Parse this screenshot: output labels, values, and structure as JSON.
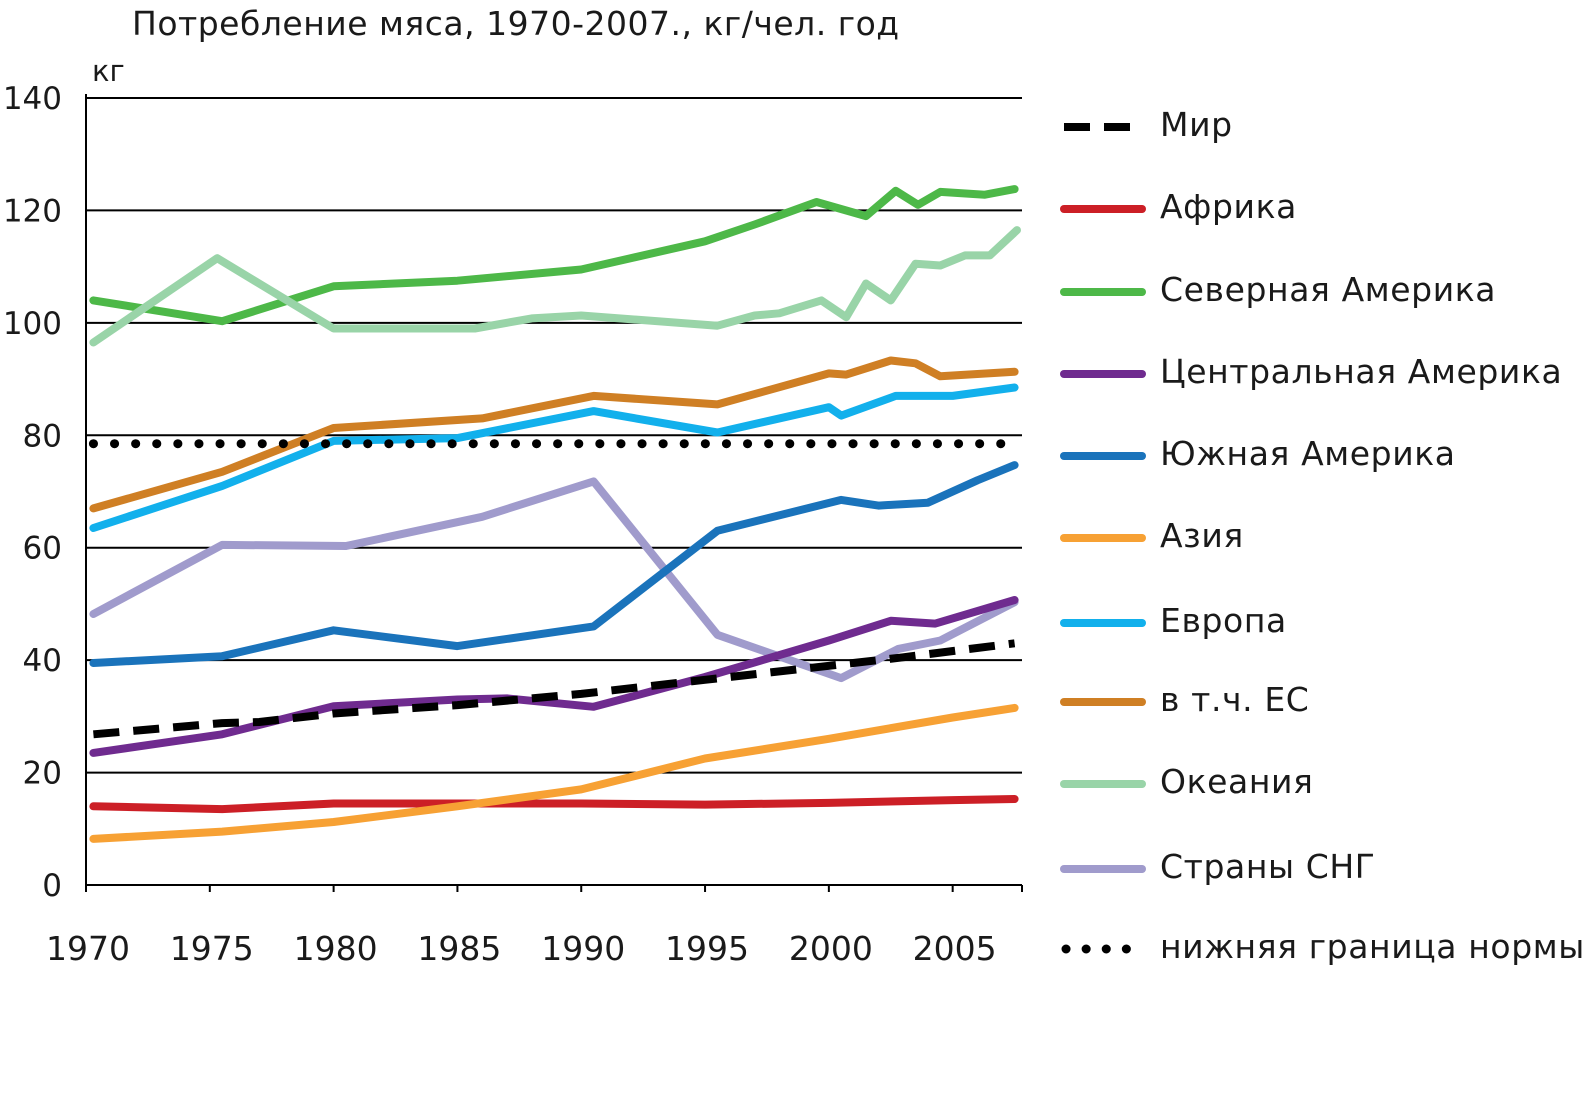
{
  "chart_data": {
    "type": "line",
    "title": "Потребление мяса, 1970-2007., кг/чел. год",
    "ylabel": "кг",
    "xlabel": "",
    "xlim": [
      1970,
      2007.8
    ],
    "ylim": [
      0,
      140
    ],
    "x_ticks": [
      1970,
      1975,
      1980,
      1985,
      1990,
      1995,
      2000,
      2005
    ],
    "y_ticks": [
      0,
      20,
      40,
      60,
      80,
      100,
      120,
      140
    ],
    "grid": "horizontal",
    "legend_position": "right",
    "series": [
      {
        "name": "Мир",
        "color": "#000000",
        "style": "dashed",
        "points": [
          [
            1970.3,
            26.8
          ],
          [
            1975.5,
            28.8
          ],
          [
            1977,
            29
          ],
          [
            1980,
            30.5
          ],
          [
            1985,
            32
          ],
          [
            1990,
            34
          ],
          [
            1995,
            36.5
          ],
          [
            2000,
            39
          ],
          [
            2003,
            40.5
          ],
          [
            2007.5,
            43
          ]
        ]
      },
      {
        "name": "Африка",
        "color": "#cc1f26",
        "style": "solid",
        "points": [
          [
            1970.3,
            14
          ],
          [
            1975.5,
            13.5
          ],
          [
            1980,
            14.5
          ],
          [
            1985,
            14.5
          ],
          [
            1990,
            14.5
          ],
          [
            1995,
            14.3
          ],
          [
            2000,
            14.6
          ],
          [
            2005,
            15.1
          ],
          [
            2007.5,
            15.3
          ]
        ]
      },
      {
        "name": "Северная Америка",
        "color": "#4db848",
        "style": "solid",
        "points": [
          [
            1970.3,
            104
          ],
          [
            1975.5,
            100.3
          ],
          [
            1980,
            106.5
          ],
          [
            1985,
            107.5
          ],
          [
            1990,
            109.5
          ],
          [
            1995,
            114.5
          ],
          [
            1997,
            117.5
          ],
          [
            1999.5,
            121.5
          ],
          [
            2001.5,
            119
          ],
          [
            2002.7,
            123.5
          ],
          [
            2003.6,
            121
          ],
          [
            2004.5,
            123.3
          ],
          [
            2006.3,
            122.8
          ],
          [
            2007.5,
            123.8
          ]
        ]
      },
      {
        "name": "Центральная Америка",
        "color": "#6f2b8f",
        "style": "solid",
        "points": [
          [
            1970.3,
            23.5
          ],
          [
            1975.5,
            26.8
          ],
          [
            1980,
            31.8
          ],
          [
            1985,
            33
          ],
          [
            1987,
            33.2
          ],
          [
            1990.5,
            31.7
          ],
          [
            1995,
            37
          ],
          [
            2000,
            43.5
          ],
          [
            2002.5,
            47
          ],
          [
            2004.3,
            46.5
          ],
          [
            2007.5,
            50.7
          ]
        ]
      },
      {
        "name": "Южная Америка",
        "color": "#1a73bb",
        "style": "solid",
        "points": [
          [
            1970.3,
            39.5
          ],
          [
            1975.5,
            40.7
          ],
          [
            1980,
            45.3
          ],
          [
            1985,
            42.5
          ],
          [
            1990.5,
            46
          ],
          [
            1995.5,
            63
          ],
          [
            2000.5,
            68.5
          ],
          [
            2002,
            67.5
          ],
          [
            2004,
            68
          ],
          [
            2006,
            72
          ],
          [
            2007.5,
            74.7
          ]
        ]
      },
      {
        "name": "Азия",
        "color": "#f7a134",
        "style": "solid",
        "points": [
          [
            1970.3,
            8.2
          ],
          [
            1975.5,
            9.5
          ],
          [
            1980,
            11.2
          ],
          [
            1985,
            14
          ],
          [
            1990,
            17
          ],
          [
            1995,
            22.5
          ],
          [
            2000,
            26
          ],
          [
            2005,
            29.8
          ],
          [
            2007.5,
            31.5
          ]
        ]
      },
      {
        "name": "Европа",
        "color": "#12b0ec",
        "style": "solid",
        "points": [
          [
            1970.3,
            63.5
          ],
          [
            1975.5,
            71
          ],
          [
            1980,
            79
          ],
          [
            1985,
            79.5
          ],
          [
            1990.5,
            84.3
          ],
          [
            1995.5,
            80.5
          ],
          [
            2000,
            85
          ],
          [
            2000.5,
            83.5
          ],
          [
            2002.7,
            87
          ],
          [
            2005,
            87
          ],
          [
            2007.5,
            88.5
          ]
        ]
      },
      {
        "name": "в т.ч. ЕС",
        "color": "#cf7f24",
        "style": "solid",
        "points": [
          [
            1970.3,
            67
          ],
          [
            1975.5,
            73.5
          ],
          [
            1980,
            81.3
          ],
          [
            1986,
            83
          ],
          [
            1990.5,
            87
          ],
          [
            1995.5,
            85.5
          ],
          [
            2000,
            91
          ],
          [
            2000.7,
            90.8
          ],
          [
            2002.5,
            93.3
          ],
          [
            2003.5,
            92.8
          ],
          [
            2004.5,
            90.5
          ],
          [
            2007.5,
            91.3
          ]
        ]
      },
      {
        "name": "Океания",
        "color": "#99d4a8",
        "style": "solid",
        "points": [
          [
            1970.3,
            96.5
          ],
          [
            1975.3,
            111.5
          ],
          [
            1980,
            99
          ],
          [
            1985.7,
            99
          ],
          [
            1988,
            100.8
          ],
          [
            1990,
            101.3
          ],
          [
            1995.5,
            99.5
          ],
          [
            1997,
            101.3
          ],
          [
            1998,
            101.7
          ],
          [
            1999.7,
            104
          ],
          [
            2000.7,
            101
          ],
          [
            2001.5,
            107
          ],
          [
            2002.5,
            104
          ],
          [
            2003.5,
            110.5
          ],
          [
            2004.5,
            110.2
          ],
          [
            2005.5,
            112
          ],
          [
            2006.5,
            112
          ],
          [
            2007.6,
            116.5
          ]
        ]
      },
      {
        "name": "Страны СНГ",
        "color": "#a09bcc",
        "style": "solid",
        "points": [
          [
            1970.3,
            48.2
          ],
          [
            1975.5,
            60.5
          ],
          [
            1980.5,
            60.3
          ],
          [
            1986,
            65.5
          ],
          [
            1990.5,
            71.8
          ],
          [
            1995.5,
            44.5
          ],
          [
            2000.5,
            36.8
          ],
          [
            2002.8,
            42
          ],
          [
            2004.5,
            43.5
          ],
          [
            2007.5,
            50.3
          ]
        ]
      },
      {
        "name": "нижняя граница нормы",
        "color": "#000000",
        "style": "dotted",
        "points": [
          [
            1970.3,
            78.5
          ],
          [
            2007.5,
            78.5
          ]
        ]
      }
    ]
  }
}
